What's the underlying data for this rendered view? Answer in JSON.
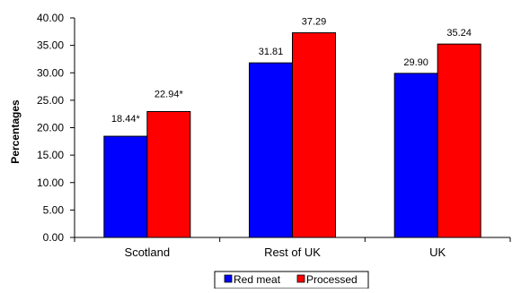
{
  "chart_data": {
    "type": "bar",
    "title": "",
    "xlabel": "",
    "ylabel": "Percentages",
    "categories": [
      "Scotland",
      "Rest of UK",
      "UK"
    ],
    "series": [
      {
        "name": "Red meat",
        "values": [
          18.44,
          31.81,
          29.9
        ],
        "labels": [
          "18.44*",
          "31.81",
          "29.90"
        ],
        "color": "#0000ff"
      },
      {
        "name": "Processed",
        "values": [
          22.94,
          37.29,
          35.24
        ],
        "labels": [
          "22.94*",
          "37.29",
          "35.24"
        ],
        "color": "#ff0000"
      }
    ],
    "ylim": [
      0,
      40
    ],
    "yticks": [
      "0.00",
      "5.00",
      "10.00",
      "15.00",
      "20.00",
      "25.00",
      "30.00",
      "35.00",
      "40.00"
    ],
    "grid": false,
    "legend_position": "bottom"
  }
}
